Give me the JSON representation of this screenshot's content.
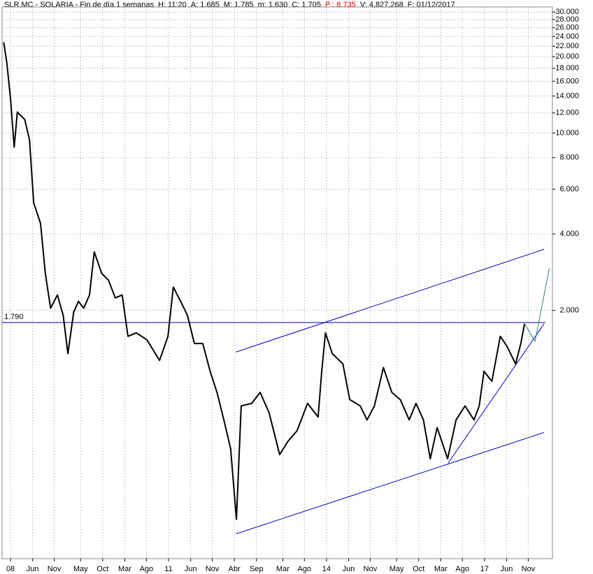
{
  "chart_data": {
    "type": "line",
    "header": [
      {
        "text": "SLR.MC - SOLARIA - Fin de día 1 semanas",
        "color": "#000000"
      },
      {
        "text": "H: 11:20",
        "color": "#000000"
      },
      {
        "text": "A: 1.685",
        "color": "#000000"
      },
      {
        "text": "M: 1.785",
        "color": "#000000"
      },
      {
        "text": "m: 1.630",
        "color": "#000000"
      },
      {
        "text": "C: 1.705",
        "color": "#000000"
      },
      {
        "text": "P : 8.735",
        "color": "#e00000"
      },
      {
        "text": "V: 4,827,268",
        "color": "#000000"
      },
      {
        "text": "F: 01/12/2017",
        "color": "#000000"
      }
    ],
    "x": [
      2007.87,
      2007.93,
      2008.0,
      2008.07,
      2008.13,
      2008.27,
      2008.36,
      2008.44,
      2008.57,
      2008.66,
      2008.76,
      2008.89,
      2009.0,
      2009.09,
      2009.2,
      2009.29,
      2009.39,
      2009.5,
      2009.59,
      2009.73,
      2009.86,
      2009.99,
      2010.12,
      2010.23,
      2010.39,
      2010.59,
      2010.83,
      2010.99,
      2011.09,
      2011.23,
      2011.36,
      2011.49,
      2011.65,
      2011.79,
      2011.92,
      2012.05,
      2012.18,
      2012.29,
      2012.38,
      2012.58,
      2012.74,
      2012.91,
      2013.11,
      2013.27,
      2013.44,
      2013.64,
      2013.84,
      2013.91,
      2013.98,
      2014.11,
      2014.31,
      2014.44,
      2014.64,
      2014.77,
      2014.91,
      2015.08,
      2015.24,
      2015.4,
      2015.57,
      2015.7,
      2015.84,
      2015.97,
      2016.1,
      2016.3,
      2016.46,
      2016.63,
      2016.8,
      2016.9,
      2016.99,
      2017.14,
      2017.3,
      2017.43,
      2017.59,
      2017.69,
      2017.76
    ],
    "series": [
      {
        "name": "SLR.MC",
        "color": "#000000",
        "values": [
          22.8,
          18.9,
          13.7,
          8.8,
          12.1,
          11.3,
          9.4,
          5.3,
          4.4,
          2.8,
          2.04,
          2.3,
          1.91,
          1.35,
          1.97,
          2.17,
          2.04,
          2.3,
          3.4,
          2.8,
          2.63,
          2.24,
          2.3,
          1.58,
          1.63,
          1.53,
          1.27,
          1.58,
          2.47,
          2.17,
          1.91,
          1.48,
          1.48,
          1.15,
          0.95,
          0.74,
          0.57,
          0.3,
          0.84,
          0.86,
          0.95,
          0.79,
          0.54,
          0.61,
          0.67,
          0.86,
          0.76,
          1.15,
          1.63,
          1.35,
          1.23,
          0.89,
          0.84,
          0.74,
          0.84,
          1.19,
          0.95,
          0.89,
          0.74,
          0.86,
          0.74,
          0.52,
          0.69,
          0.52,
          0.74,
          0.84,
          0.74,
          0.84,
          1.15,
          1.05,
          1.58,
          1.44,
          1.23,
          1.48,
          1.77
        ]
      }
    ],
    "log_scale": true,
    "grid": true,
    "xlim": [
      2007.84,
      2018.29
    ],
    "ylim": [
      0.21,
      31.4
    ],
    "xticks": [
      {
        "value": 2008.0,
        "label": "08"
      },
      {
        "value": 2008.42,
        "label": "Jun"
      },
      {
        "value": 2008.83,
        "label": "Nov"
      },
      {
        "value": 2009.33,
        "label": "May"
      },
      {
        "value": 2009.75,
        "label": "Oct"
      },
      {
        "value": 2010.17,
        "label": "Mar"
      },
      {
        "value": 2010.58,
        "label": "Ago"
      },
      {
        "value": 2011.0,
        "label": "11"
      },
      {
        "value": 2011.42,
        "label": "Jun"
      },
      {
        "value": 2011.83,
        "label": "Nov"
      },
      {
        "value": 2012.25,
        "label": "Abr"
      },
      {
        "value": 2012.67,
        "label": "Sep"
      },
      {
        "value": 2013.17,
        "label": "Mar"
      },
      {
        "value": 2013.58,
        "label": "Ago"
      },
      {
        "value": 2014.0,
        "label": "14"
      },
      {
        "value": 2014.42,
        "label": "Jun"
      },
      {
        "value": 2014.83,
        "label": "Nov"
      },
      {
        "value": 2015.33,
        "label": "May"
      },
      {
        "value": 2015.75,
        "label": "Oct"
      },
      {
        "value": 2016.17,
        "label": "Mar"
      },
      {
        "value": 2016.58,
        "label": "Ago"
      },
      {
        "value": 2017.0,
        "label": "17"
      },
      {
        "value": 2017.42,
        "label": "Jun"
      },
      {
        "value": 2017.83,
        "label": "Nov"
      }
    ],
    "yticks": [
      {
        "value": 30,
        "label": "30.000"
      },
      {
        "value": 28,
        "label": "28.000"
      },
      {
        "value": 26,
        "label": "26.000"
      },
      {
        "value": 24,
        "label": "24.000"
      },
      {
        "value": 22,
        "label": "22.000"
      },
      {
        "value": 20,
        "label": "20.000"
      },
      {
        "value": 18,
        "label": "18.000"
      },
      {
        "value": 16,
        "label": "16.000"
      },
      {
        "value": 14,
        "label": "14.000"
      },
      {
        "value": 12,
        "label": "12.000"
      },
      {
        "value": 10,
        "label": "10.000"
      },
      {
        "value": 8,
        "label": "8.000"
      },
      {
        "value": 6,
        "label": "6.000"
      },
      {
        "value": 4,
        "label": "4.000"
      },
      {
        "value": 2,
        "label": "2.000"
      }
    ],
    "hline": {
      "value": 1.79,
      "label": "1.790",
      "color": "#0000a0"
    },
    "trend_lines": [
      {
        "color": "#0000c8",
        "x": [
          2012.28,
          2018.13
        ],
        "y": [
          1.37,
          3.48
        ]
      },
      {
        "color": "#0000c8",
        "x": [
          2012.28,
          2018.13
        ],
        "y": [
          0.263,
          0.66
        ]
      },
      {
        "color": "#0000c8",
        "x": [
          2016.31,
          2018.13
        ],
        "y": [
          0.5,
          1.77
        ]
      },
      {
        "color": "#2e7d7d",
        "x": [
          2017.76,
          2017.96,
          2018.23
        ],
        "y": [
          1.77,
          1.51,
          2.93
        ]
      }
    ]
  }
}
